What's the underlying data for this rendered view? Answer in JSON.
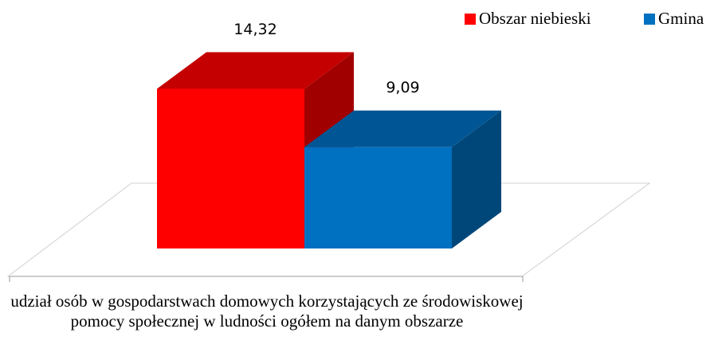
{
  "chart_data": {
    "type": "bar3d",
    "categories": [
      "udział osób w gospodarstwach domowych korzystających ze środowiskowej pomocy społecznej w ludności ogółem na danym obszarze"
    ],
    "series": [
      {
        "name": "Obszar niebieski",
        "color": "#ff0000",
        "values": [
          14.32
        ],
        "value_labels": [
          "14,32"
        ]
      },
      {
        "name": "Gmina",
        "color": "#0070c0",
        "values": [
          9.09
        ],
        "value_labels": [
          "9,09"
        ]
      }
    ],
    "legend": "top-right"
  }
}
